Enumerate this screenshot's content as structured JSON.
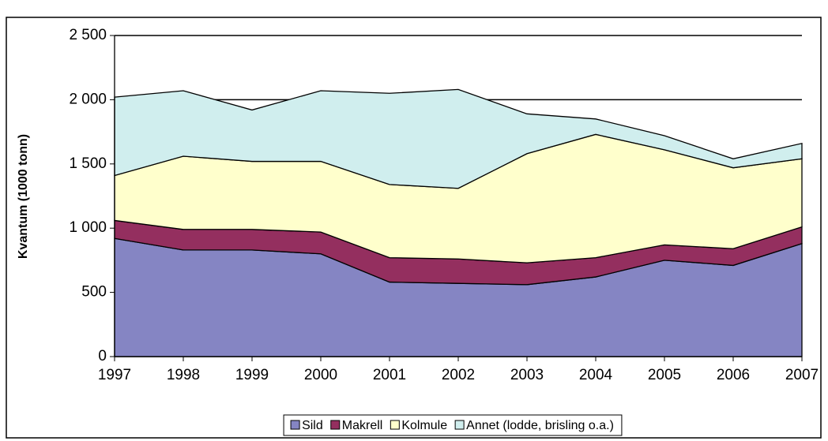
{
  "chart_data": {
    "type": "stacked_area",
    "y_label": "Kvantum  (1000 tonn)",
    "categories": [
      "1997",
      "1998",
      "1999",
      "2000",
      "2001",
      "2002",
      "2003",
      "2004",
      "2005",
      "2006",
      "2007"
    ],
    "series": [
      {
        "name": "Sild",
        "color": "#8585c3",
        "values": [
          920,
          830,
          830,
          800,
          580,
          570,
          560,
          620,
          750,
          710,
          880
        ]
      },
      {
        "name": "Makrell",
        "color": "#942f5f",
        "values": [
          140,
          160,
          160,
          170,
          190,
          190,
          170,
          150,
          120,
          130,
          130
        ]
      },
      {
        "name": "Kolmule",
        "color": "#ffffcc",
        "values": [
          350,
          570,
          530,
          550,
          570,
          550,
          850,
          960,
          740,
          630,
          530
        ]
      },
      {
        "name": "Annet (lodde, brisling o.a.)",
        "color": "#d0eeee",
        "values": [
          610,
          510,
          400,
          550,
          710,
          770,
          310,
          120,
          110,
          70,
          120
        ]
      }
    ],
    "ylim": [
      0,
      2500
    ],
    "yticks": [
      0,
      500,
      {
        "value": 1000,
        "label": "1 000"
      },
      {
        "value": 1500,
        "label": "1 500"
      },
      {
        "value": 2000,
        "label": "2 000"
      },
      {
        "value": 2500,
        "label": "2 500"
      }
    ],
    "grid": true,
    "legend": "bottom"
  }
}
